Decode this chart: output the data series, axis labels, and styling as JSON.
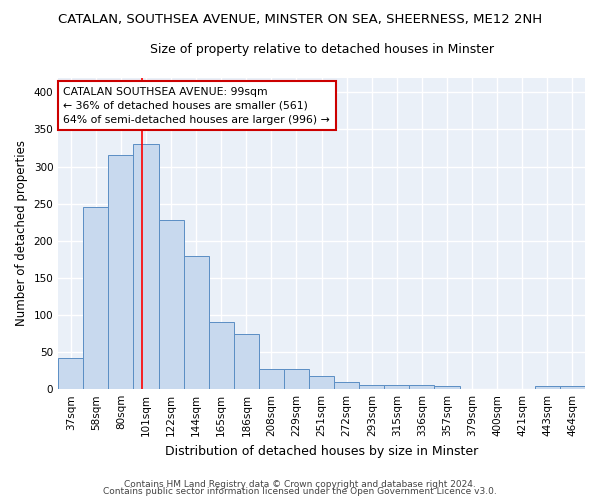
{
  "title": "CATALAN, SOUTHSEA AVENUE, MINSTER ON SEA, SHEERNESS, ME12 2NH",
  "subtitle": "Size of property relative to detached houses in Minster",
  "xlabel": "Distribution of detached houses by size in Minster",
  "ylabel": "Number of detached properties",
  "footnote1": "Contains HM Land Registry data © Crown copyright and database right 2024.",
  "footnote2": "Contains public sector information licensed under the Open Government Licence v3.0.",
  "categories": [
    "37sqm",
    "58sqm",
    "80sqm",
    "101sqm",
    "122sqm",
    "144sqm",
    "165sqm",
    "186sqm",
    "208sqm",
    "229sqm",
    "251sqm",
    "272sqm",
    "293sqm",
    "315sqm",
    "336sqm",
    "357sqm",
    "379sqm",
    "400sqm",
    "421sqm",
    "443sqm",
    "464sqm"
  ],
  "values": [
    42,
    245,
    315,
    330,
    228,
    180,
    90,
    75,
    27,
    27,
    18,
    10,
    5,
    6,
    5,
    4,
    0,
    0,
    0,
    4,
    4
  ],
  "bar_color": "#c8d9ee",
  "bar_edge_color": "#5b8ec4",
  "bg_color": "#eaf0f8",
  "grid_color": "#ffffff",
  "fig_bg_color": "#ffffff",
  "red_line_x": 2.85,
  "annotation_line1": "CATALAN SOUTHSEA AVENUE: 99sqm",
  "annotation_line2": "← 36% of detached houses are smaller (561)",
  "annotation_line3": "64% of semi-detached houses are larger (996) →",
  "annotation_box_color": "#ffffff",
  "annotation_box_edge_color": "#cc0000",
  "ylim": [
    0,
    420
  ],
  "yticks": [
    0,
    50,
    100,
    150,
    200,
    250,
    300,
    350,
    400
  ],
  "title_fontsize": 9.5,
  "subtitle_fontsize": 9,
  "xlabel_fontsize": 9,
  "ylabel_fontsize": 8.5,
  "tick_fontsize": 7.5,
  "annotation_fontsize": 7.8,
  "footnote_fontsize": 6.5
}
